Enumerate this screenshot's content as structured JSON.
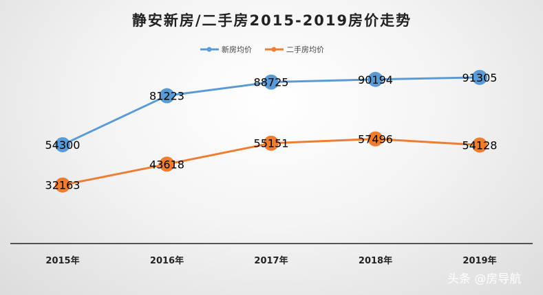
{
  "chart_data": {
    "type": "line",
    "title": "静安新房/二手房2015-2019房价走势",
    "categories": [
      "2015年",
      "2016年",
      "2017年",
      "2018年",
      "2019年"
    ],
    "series": [
      {
        "name": "新房均价",
        "color": "#5b9bd5",
        "values": [
          54300,
          81223,
          88725,
          90194,
          91305
        ]
      },
      {
        "name": "二手房均价",
        "color": "#ed7d31",
        "values": [
          32163,
          43618,
          55151,
          57496,
          54128
        ]
      }
    ],
    "xlabel": "",
    "ylabel": "",
    "ylim": [
      0,
      110000
    ],
    "grid": false,
    "legend_position": "top-center",
    "data_labels": true
  },
  "watermark": "头条 @房导航"
}
